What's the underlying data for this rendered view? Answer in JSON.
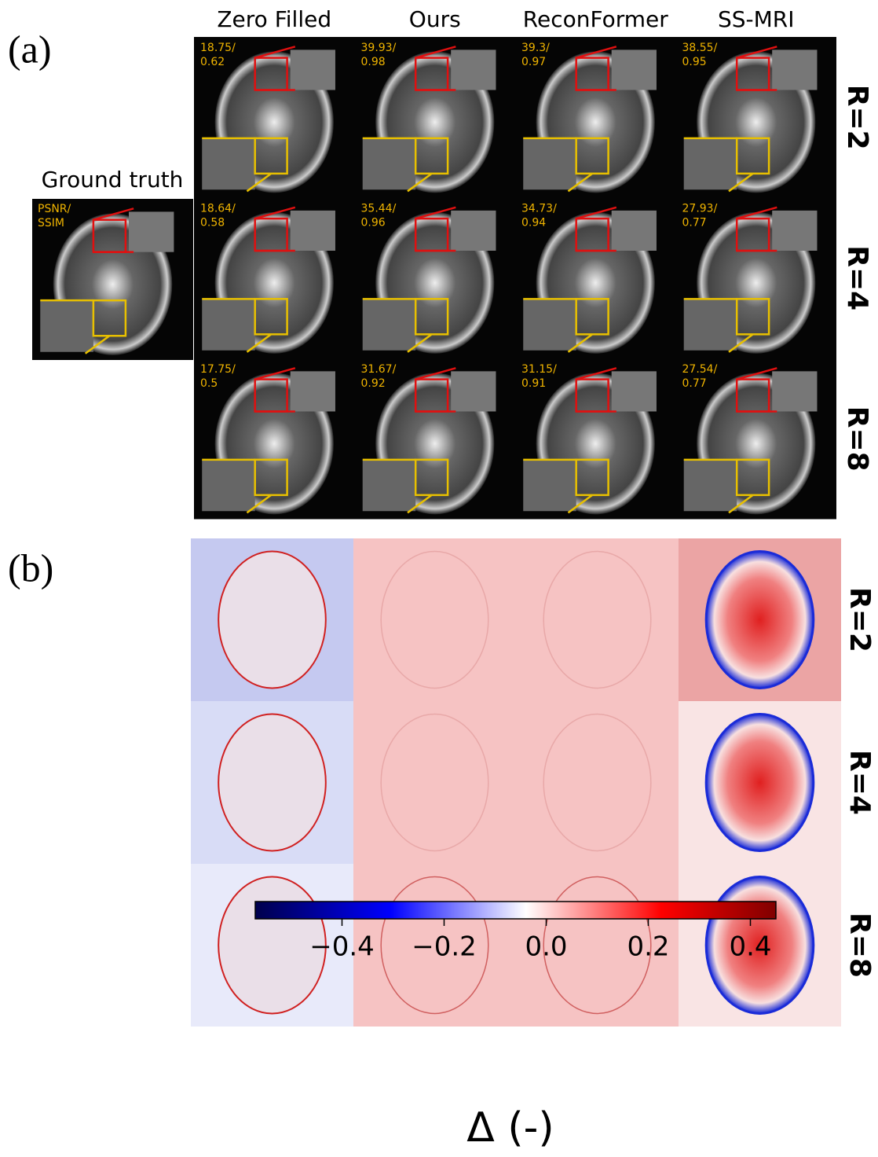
{
  "panel_a": {
    "label": "(a)",
    "columns": [
      "Zero Filled",
      "Ours",
      "ReconFormer",
      "SS-MRI"
    ],
    "rows": [
      "R=2",
      "R=4",
      "R=8"
    ],
    "ground_truth": {
      "title": "Ground truth",
      "metrics": [
        "PSNR/",
        "SSIM"
      ]
    },
    "metrics": [
      [
        [
          "18.75/",
          "0.62"
        ],
        [
          "39.93/",
          "0.98"
        ],
        [
          "39.3/",
          "0.97"
        ],
        [
          "38.55/",
          "0.95"
        ]
      ],
      [
        [
          "18.64/",
          "0.58"
        ],
        [
          "35.44/",
          "0.96"
        ],
        [
          "34.73/",
          "0.94"
        ],
        [
          "27.93/",
          "0.77"
        ]
      ],
      [
        [
          "17.75/",
          "0.5"
        ],
        [
          "31.67/",
          "0.92"
        ],
        [
          "31.15/",
          "0.91"
        ],
        [
          "27.54/",
          "0.77"
        ]
      ]
    ]
  },
  "panel_b": {
    "label": "(b)",
    "rows": [
      "R=2",
      "R=4",
      "R=8"
    ]
  },
  "colorbar": {
    "label": "Δ (-)",
    "lim": [
      -0.57,
      0.45
    ],
    "ticks": [
      {
        "value": -0.4,
        "label": "−0.4"
      },
      {
        "value": -0.2,
        "label": "−0.2"
      },
      {
        "value": 0,
        "label": "0.0"
      },
      {
        "value": 0.2,
        "label": "0.2"
      },
      {
        "value": 0.4,
        "label": "0.4"
      }
    ]
  }
}
